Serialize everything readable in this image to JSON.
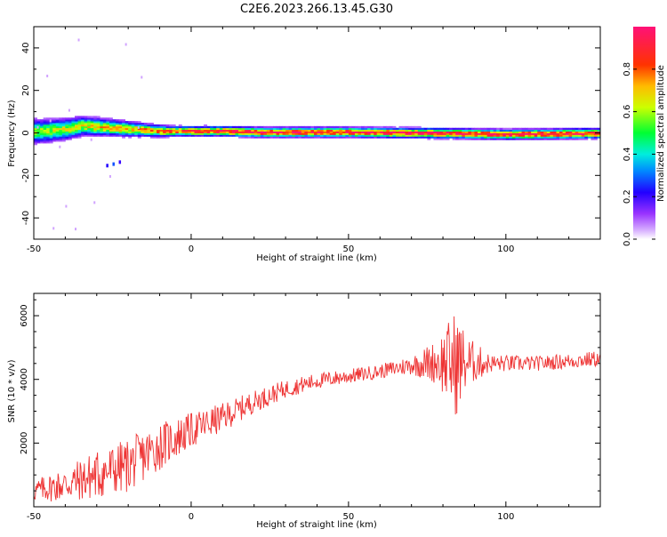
{
  "figure": {
    "title": "C2E6.2023.266.13.45.G30"
  },
  "chart_data": [
    {
      "type": "heatmap",
      "title": "C2E6.2023.266.13.45.G30",
      "xlabel": "Height of straight line (km)",
      "ylabel": "Frequency (Hz)",
      "xlim": [
        -50,
        130
      ],
      "ylim": [
        -50,
        50
      ],
      "xticks": [
        -50,
        0,
        50,
        100
      ],
      "yticks": [
        -40,
        -20,
        0,
        20,
        40
      ],
      "colorbar": {
        "label": "Normalized spectral amplitude",
        "range": [
          0,
          1
        ],
        "ticks": [
          0.0,
          0.2,
          0.4,
          0.6,
          0.8
        ],
        "colormap": "gist_rainbow"
      },
      "ridge": [
        {
          "x": -48,
          "f": 0.5
        },
        {
          "x": -40,
          "f": 1.5
        },
        {
          "x": -35,
          "f": 3.0
        },
        {
          "x": -30,
          "f": 2.5
        },
        {
          "x": -20,
          "f": 1.5
        },
        {
          "x": -10,
          "f": 0.5
        },
        {
          "x": 0,
          "f": 0.5
        },
        {
          "x": 10,
          "f": 0.5
        },
        {
          "x": 20,
          "f": 0.0
        },
        {
          "x": 50,
          "f": 0.0
        },
        {
          "x": 80,
          "f": -0.5
        },
        {
          "x": 100,
          "f": -1.0
        },
        {
          "x": 130,
          "f": -0.5
        }
      ]
    },
    {
      "type": "line",
      "xlabel": "Height of straight line (km)",
      "ylabel": "SNR (10 * v/v)",
      "xlim": [
        -50,
        130
      ],
      "ylim": [
        0,
        6700
      ],
      "xticks": [
        -50,
        0,
        50,
        100
      ],
      "yticks": [
        2000,
        4000,
        6000
      ],
      "color": "#ee3333",
      "envelope": [
        {
          "x": -50,
          "mean": 500,
          "amp": 350
        },
        {
          "x": -40,
          "mean": 700,
          "amp": 550
        },
        {
          "x": -30,
          "mean": 1000,
          "amp": 800
        },
        {
          "x": -20,
          "mean": 1300,
          "amp": 850
        },
        {
          "x": -10,
          "mean": 1900,
          "amp": 750
        },
        {
          "x": 0,
          "mean": 2400,
          "amp": 550
        },
        {
          "x": 10,
          "mean": 2800,
          "amp": 450
        },
        {
          "x": 20,
          "mean": 3300,
          "amp": 350
        },
        {
          "x": 30,
          "mean": 3700,
          "amp": 280
        },
        {
          "x": 40,
          "mean": 3950,
          "amp": 250
        },
        {
          "x": 50,
          "mean": 4100,
          "amp": 230
        },
        {
          "x": 60,
          "mean": 4250,
          "amp": 220
        },
        {
          "x": 70,
          "mean": 4450,
          "amp": 300
        },
        {
          "x": 78,
          "mean": 4550,
          "amp": 700
        },
        {
          "x": 84,
          "mean": 4500,
          "amp": 1700
        },
        {
          "x": 88,
          "mean": 4550,
          "amp": 800
        },
        {
          "x": 95,
          "mean": 4500,
          "amp": 280
        },
        {
          "x": 110,
          "mean": 4500,
          "amp": 230
        },
        {
          "x": 130,
          "mean": 4650,
          "amp": 250
        }
      ]
    }
  ]
}
